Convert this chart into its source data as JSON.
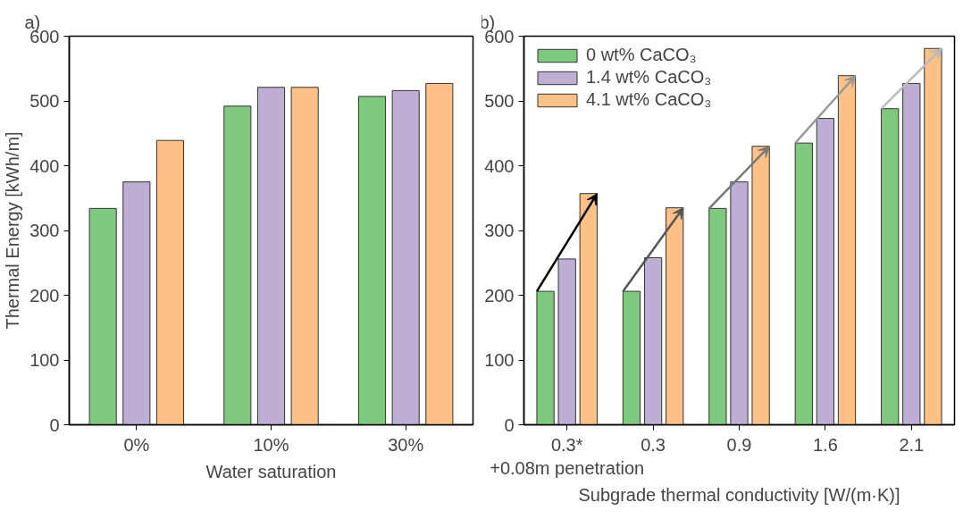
{
  "chart_data": [
    {
      "type": "bar",
      "title": "a)",
      "xlabel": "Water saturation",
      "ylabel": "Thermal Energy [kWh/m]",
      "categories": [
        "0%",
        "10%",
        "30%"
      ],
      "ylim": [
        0,
        600
      ],
      "yticks": [
        0,
        100,
        200,
        300,
        400,
        500,
        600
      ],
      "grid": false,
      "legend": false,
      "series": [
        {
          "color": "#7fc97f",
          "values": [
            334,
            492,
            507
          ]
        },
        {
          "color": "#beaed4",
          "values": [
            375,
            521,
            516
          ]
        },
        {
          "color": "#fdc086",
          "values": [
            439,
            521,
            527
          ]
        }
      ]
    },
    {
      "type": "bar",
      "title": "b)",
      "xlabel": "Subgrade thermal conductivity [W/(m·K)]",
      "categories": [
        "0.3*\n+0.08m penetration",
        "0.3",
        "0.9",
        "1.6",
        "2.1"
      ],
      "ylim": [
        0,
        600
      ],
      "yticks": [
        0,
        100,
        200,
        300,
        400,
        500,
        600
      ],
      "grid": false,
      "legend": "top left",
      "series": [
        {
          "name": "0 wt% CaCO₃",
          "color": "#7fc97f",
          "values": [
            206,
            206,
            334,
            435,
            488
          ]
        },
        {
          "name": "1.4 wt% CaCO₃",
          "color": "#beaed4",
          "values": [
            256,
            258,
            375,
            473,
            527
          ]
        },
        {
          "name": "4.1 wt% CaCO₃",
          "color": "#fdc086",
          "values": [
            357,
            335,
            430,
            539,
            581
          ]
        }
      ]
    }
  ]
}
